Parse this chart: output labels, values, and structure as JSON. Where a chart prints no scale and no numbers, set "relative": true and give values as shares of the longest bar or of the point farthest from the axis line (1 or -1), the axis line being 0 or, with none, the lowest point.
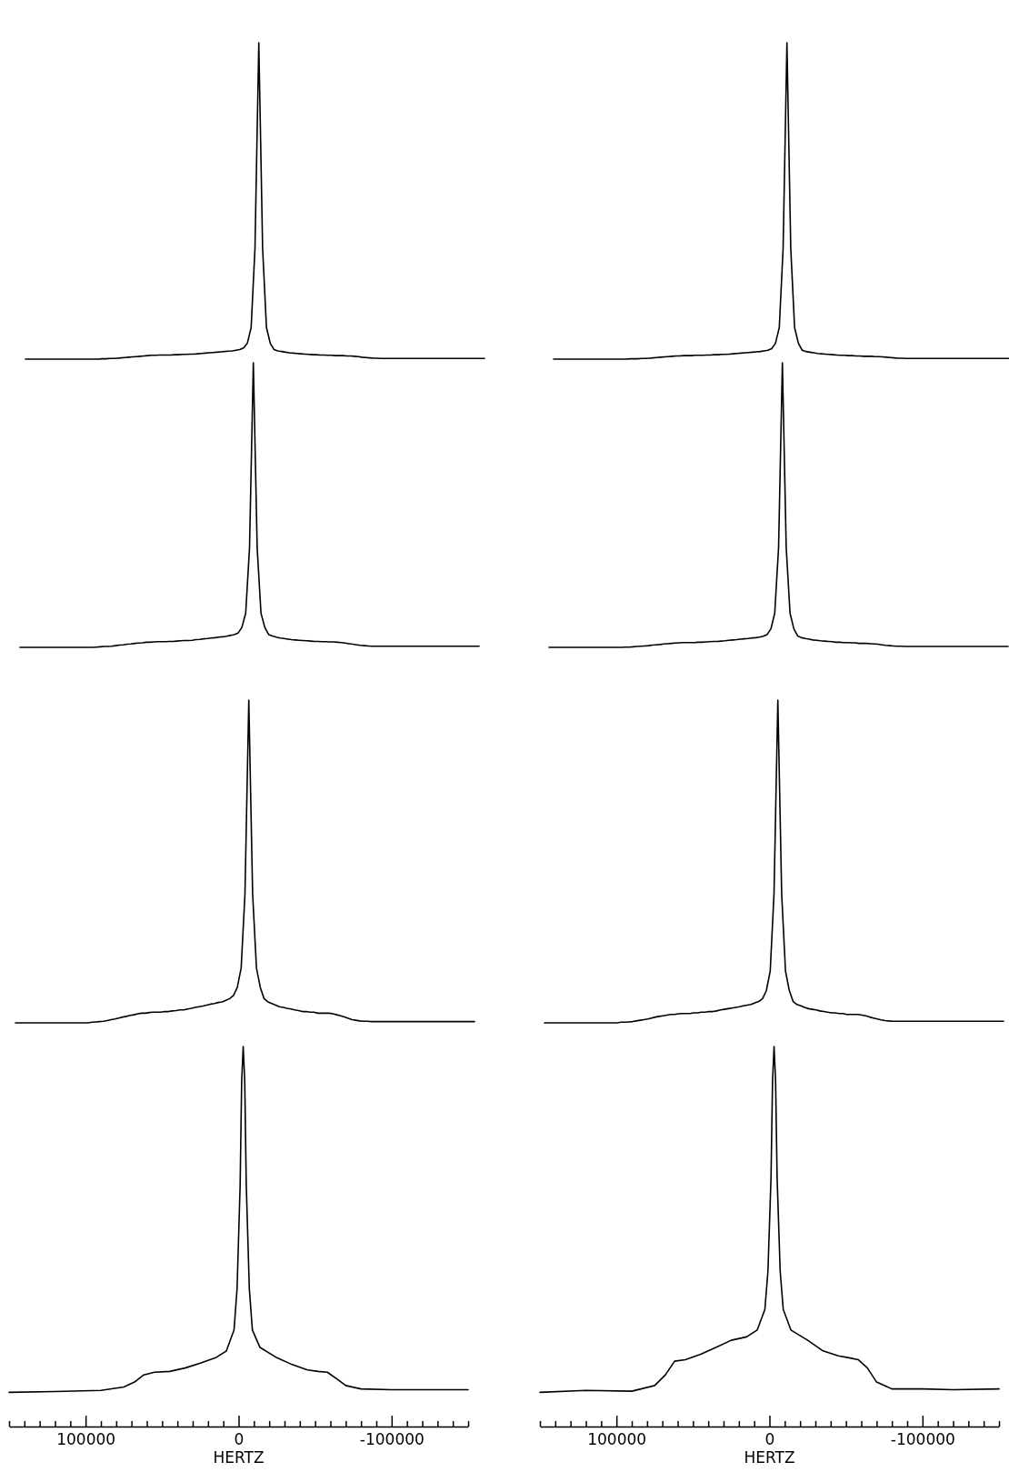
{
  "chart_data": [
    {
      "type": "line",
      "relative": true,
      "tick_labels": false,
      "categories": [
        null,
        null,
        null,
        null,
        null,
        null,
        null,
        null,
        null,
        null,
        null,
        null,
        null,
        null,
        null,
        null,
        null,
        null,
        null,
        null,
        null,
        null,
        null,
        null,
        null,
        null,
        null,
        null,
        null,
        null,
        null,
        null,
        null,
        null,
        null,
        null,
        null,
        null,
        null,
        null,
        null,
        null,
        null,
        null,
        null,
        null,
        null,
        null,
        null,
        null,
        null,
        null,
        null,
        null,
        null,
        null,
        null,
        null,
        null,
        null,
        null,
        null,
        null,
        null,
        null,
        null,
        null,
        null,
        null,
        null,
        null,
        null,
        null,
        null,
        null,
        null,
        null,
        null,
        null,
        null,
        null,
        null,
        null,
        null,
        null,
        null,
        null,
        null,
        null,
        null,
        null,
        null,
        null,
        null,
        null,
        null,
        null,
        null,
        null,
        null,
        null,
        null,
        null,
        null,
        null,
        null,
        null,
        null,
        null,
        null,
        null,
        null,
        null,
        null,
        null,
        null,
        null,
        null,
        null,
        null,
        null
      ],
      "series": [
        {
          "color": "#000000",
          "values": [
            0,
            0,
            0,
            0,
            0,
            0,
            0,
            0,
            0,
            0,
            0,
            0,
            0,
            0,
            0,
            0,
            0,
            0,
            0,
            0,
            0.001,
            0.001,
            0.002,
            0.002,
            0.003,
            0.004,
            0.005,
            0.006,
            0.007,
            0.008,
            0.009,
            0.01,
            0.011,
            0.012,
            0.012,
            0.013,
            0.013,
            0.013,
            0.013,
            0.014,
            0.014,
            0.015,
            0.015,
            0.016,
            0.016,
            0.017,
            0.018,
            0.019,
            0.02,
            0.021,
            0.022,
            0.023,
            0.024,
            0.025,
            0.026,
            0.028,
            0.03,
            0.035,
            0.05,
            0.1,
            0.35,
            1,
            0.35,
            0.1,
            0.05,
            0.03,
            0.026,
            0.024,
            0.022,
            0.02,
            0.019,
            0.018,
            0.017,
            0.016,
            0.015,
            0.014,
            0.014,
            0.013,
            0.013,
            0.012,
            0.012,
            0.011,
            0.011,
            0.011,
            0.01,
            0.01,
            0.009,
            0.008,
            0.006,
            0.005,
            0.004,
            0.003,
            0.003,
            0.002,
            0.002,
            0.002,
            0.002,
            0.002,
            0.002,
            0.002,
            0.002,
            0.002,
            0.002,
            0.002,
            0.002,
            0.002,
            0.002,
            0.002,
            0.002,
            0.002,
            0.002,
            0.002,
            0.002,
            0.002,
            0.002,
            0.002,
            0.002,
            0.002,
            0.002,
            0.002,
            0.002
          ]
        }
      ]
    },
    {
      "type": "line",
      "relative": true,
      "tick_labels": false,
      "categories": [
        null,
        null,
        null,
        null,
        null,
        null,
        null,
        null,
        null,
        null,
        null,
        null,
        null,
        null,
        null,
        null,
        null,
        null,
        null,
        null,
        null,
        null,
        null,
        null,
        null,
        null,
        null,
        null,
        null,
        null,
        null,
        null,
        null,
        null,
        null,
        null,
        null,
        null,
        null,
        null,
        null,
        null,
        null,
        null,
        null,
        null,
        null,
        null,
        null,
        null,
        null,
        null,
        null,
        null,
        null,
        null,
        null,
        null,
        null,
        null,
        null,
        null,
        null,
        null,
        null,
        null,
        null,
        null,
        null,
        null,
        null,
        null,
        null,
        null,
        null,
        null,
        null,
        null,
        null,
        null,
        null,
        null,
        null,
        null,
        null,
        null,
        null,
        null,
        null,
        null,
        null,
        null,
        null,
        null,
        null,
        null,
        null,
        null,
        null,
        null,
        null,
        null,
        null,
        null,
        null,
        null,
        null,
        null,
        null,
        null,
        null,
        null,
        null,
        null,
        null,
        null,
        null,
        null,
        null,
        null,
        null
      ],
      "series": [
        {
          "color": "#000000",
          "values": [
            0,
            0,
            0,
            0,
            0,
            0,
            0,
            0,
            0,
            0,
            0,
            0,
            0,
            0,
            0,
            0,
            0,
            0,
            0,
            0,
            0.001,
            0.001,
            0.001,
            0.002,
            0.002,
            0.003,
            0.004,
            0.005,
            0.006,
            0.007,
            0.008,
            0.009,
            0.01,
            0.01,
            0.011,
            0.011,
            0.011,
            0.012,
            0.012,
            0.012,
            0.013,
            0.013,
            0.014,
            0.014,
            0.015,
            0.015,
            0.016,
            0.017,
            0.018,
            0.019,
            0.02,
            0.021,
            0.022,
            0.023,
            0.024,
            0.026,
            0.028,
            0.033,
            0.05,
            0.1,
            0.35,
            1,
            0.35,
            0.1,
            0.05,
            0.028,
            0.024,
            0.022,
            0.02,
            0.018,
            0.017,
            0.016,
            0.015,
            0.014,
            0.013,
            0.012,
            0.012,
            0.011,
            0.011,
            0.01,
            0.01,
            0.009,
            0.009,
            0.009,
            0.008,
            0.008,
            0.007,
            0.006,
            0.005,
            0.004,
            0.003,
            0.003,
            0.002,
            0.002,
            0.002,
            0.002,
            0.002,
            0.002,
            0.002,
            0.002,
            0.002,
            0.002,
            0.002,
            0.002,
            0.002,
            0.002,
            0.002,
            0.002,
            0.002,
            0.002,
            0.002,
            0.002,
            0.002,
            0.002,
            0.002,
            0.002,
            0.002,
            0.002,
            0.002,
            0.002,
            0.002
          ]
        }
      ]
    },
    {
      "type": "line",
      "relative": true,
      "tick_labels": false,
      "categories": [
        null,
        null,
        null,
        null,
        null,
        null,
        null,
        null,
        null,
        null,
        null,
        null,
        null,
        null,
        null,
        null,
        null,
        null,
        null,
        null,
        null,
        null,
        null,
        null,
        null,
        null,
        null,
        null,
        null,
        null,
        null,
        null,
        null,
        null,
        null,
        null,
        null,
        null,
        null,
        null,
        null,
        null,
        null,
        null,
        null,
        null,
        null,
        null,
        null,
        null,
        null,
        null,
        null,
        null,
        null,
        null,
        null,
        null,
        null,
        null,
        null,
        null,
        null,
        null,
        null,
        null,
        null,
        null,
        null,
        null,
        null,
        null,
        null,
        null,
        null,
        null,
        null,
        null,
        null,
        null,
        null,
        null,
        null,
        null,
        null,
        null,
        null,
        null,
        null,
        null,
        null,
        null,
        null,
        null,
        null,
        null,
        null,
        null,
        null,
        null,
        null,
        null,
        null,
        null,
        null,
        null,
        null,
        null,
        null,
        null,
        null,
        null,
        null,
        null,
        null,
        null,
        null,
        null,
        null,
        null,
        null
      ],
      "series": [
        {
          "color": "#000000",
          "values": [
            0,
            0,
            0,
            0,
            0,
            0,
            0,
            0,
            0,
            0,
            0,
            0,
            0,
            0,
            0,
            0,
            0,
            0,
            0,
            0,
            0.001,
            0.002,
            0.003,
            0.003,
            0.004,
            0.006,
            0.008,
            0.009,
            0.011,
            0.012,
            0.014,
            0.015,
            0.016,
            0.018,
            0.018,
            0.019,
            0.02,
            0.02,
            0.02,
            0.021,
            0.021,
            0.022,
            0.023,
            0.024,
            0.024,
            0.025,
            0.027,
            0.028,
            0.03,
            0.031,
            0.033,
            0.034,
            0.036,
            0.037,
            0.039,
            0.042,
            0.045,
            0.05,
            0.07,
            0.12,
            0.35,
            1,
            0.35,
            0.12,
            0.07,
            0.045,
            0.04,
            0.036,
            0.033,
            0.031,
            0.029,
            0.027,
            0.026,
            0.025,
            0.024,
            0.023,
            0.022,
            0.021,
            0.021,
            0.02,
            0.02,
            0.019,
            0.019,
            0.018,
            0.017,
            0.015,
            0.013,
            0.011,
            0.009,
            0.007,
            0.006,
            0.005,
            0.004,
            0.004,
            0.004,
            0.004,
            0.004,
            0.004,
            0.004,
            0.004,
            0.004,
            0.004,
            0.004,
            0.004,
            0.004,
            0.004,
            0.004,
            0.004,
            0.004,
            0.004,
            0.004,
            0.004,
            0.004,
            0.004,
            0.004,
            0.004,
            0.004,
            0.004,
            0.004,
            0.004,
            0.004
          ]
        }
      ]
    },
    {
      "type": "line",
      "relative": true,
      "tick_labels": false,
      "categories": [
        null,
        null,
        null,
        null,
        null,
        null,
        null,
        null,
        null,
        null,
        null,
        null,
        null,
        null,
        null,
        null,
        null,
        null,
        null,
        null,
        null,
        null,
        null,
        null,
        null,
        null,
        null,
        null,
        null,
        null,
        null,
        null,
        null,
        null,
        null,
        null,
        null,
        null,
        null,
        null,
        null,
        null,
        null,
        null,
        null,
        null,
        null,
        null,
        null,
        null,
        null,
        null,
        null,
        null,
        null,
        null,
        null,
        null,
        null,
        null,
        null,
        null,
        null,
        null,
        null,
        null,
        null,
        null,
        null,
        null,
        null,
        null,
        null,
        null,
        null,
        null,
        null,
        null,
        null,
        null,
        null,
        null,
        null,
        null,
        null,
        null,
        null,
        null,
        null,
        null,
        null,
        null,
        null,
        null,
        null,
        null,
        null,
        null,
        null,
        null,
        null,
        null,
        null,
        null,
        null,
        null,
        null,
        null,
        null,
        null,
        null,
        null,
        null,
        null,
        null,
        null,
        null,
        null,
        null,
        null,
        null
      ],
      "series": [
        {
          "color": "#000000",
          "values": [
            0,
            0,
            0,
            0,
            0,
            0,
            0,
            0,
            0,
            0,
            0,
            0,
            0,
            0,
            0,
            0,
            0,
            0,
            0,
            0,
            0.001,
            0.001,
            0.002,
            0.003,
            0.004,
            0.005,
            0.006,
            0.008,
            0.009,
            0.01,
            0.012,
            0.013,
            0.014,
            0.015,
            0.016,
            0.017,
            0.017,
            0.017,
            0.017,
            0.018,
            0.018,
            0.019,
            0.02,
            0.021,
            0.021,
            0.022,
            0.023,
            0.025,
            0.026,
            0.027,
            0.029,
            0.03,
            0.031,
            0.033,
            0.034,
            0.036,
            0.039,
            0.045,
            0.065,
            0.12,
            0.35,
            1,
            0.35,
            0.12,
            0.065,
            0.04,
            0.034,
            0.031,
            0.029,
            0.026,
            0.025,
            0.023,
            0.022,
            0.021,
            0.02,
            0.018,
            0.018,
            0.017,
            0.017,
            0.016,
            0.016,
            0.014,
            0.014,
            0.014,
            0.013,
            0.012,
            0.011,
            0.009,
            0.007,
            0.006,
            0.005,
            0.004,
            0.004,
            0.003,
            0.003,
            0.003,
            0.003,
            0.003,
            0.003,
            0.003,
            0.003,
            0.003,
            0.003,
            0.003,
            0.003,
            0.003,
            0.003,
            0.003,
            0.003,
            0.003,
            0.003,
            0.003,
            0.003,
            0.003,
            0.003,
            0.003,
            0.003,
            0.003,
            0.003,
            0.003,
            0.003
          ]
        }
      ]
    },
    {
      "type": "line",
      "relative": true,
      "tick_labels": false,
      "categories": [
        null,
        null,
        null,
        null,
        null,
        null,
        null,
        null,
        null,
        null,
        null,
        null,
        null,
        null,
        null,
        null,
        null,
        null,
        null,
        null,
        null,
        null,
        null,
        null,
        null,
        null,
        null,
        null,
        null,
        null,
        null,
        null,
        null,
        null,
        null,
        null,
        null,
        null,
        null,
        null,
        null,
        null,
        null,
        null,
        null,
        null,
        null,
        null,
        null,
        null,
        null,
        null,
        null,
        null,
        null,
        null,
        null,
        null,
        null,
        null,
        null,
        null,
        null,
        null,
        null,
        null,
        null,
        null,
        null,
        null,
        null,
        null,
        null,
        null,
        null,
        null,
        null,
        null,
        null,
        null,
        null,
        null,
        null,
        null,
        null,
        null,
        null,
        null,
        null,
        null,
        null,
        null,
        null,
        null,
        null,
        null,
        null,
        null,
        null,
        null,
        null,
        null,
        null,
        null,
        null,
        null,
        null,
        null,
        null,
        null,
        null,
        null,
        null,
        null,
        null,
        null,
        null,
        null,
        null,
        null,
        null
      ],
      "series": [
        {
          "color": "#000000",
          "values": [
            0,
            0,
            0,
            0,
            0,
            0,
            0,
            0,
            0,
            0,
            0,
            0,
            0,
            0,
            0,
            0,
            0,
            0,
            0,
            0,
            0.002,
            0.003,
            0.004,
            0.005,
            0.007,
            0.01,
            0.012,
            0.015,
            0.018,
            0.02,
            0.023,
            0.025,
            0.028,
            0.03,
            0.03,
            0.032,
            0.033,
            0.033,
            0.033,
            0.035,
            0.035,
            0.037,
            0.038,
            0.04,
            0.04,
            0.043,
            0.045,
            0.048,
            0.05,
            0.052,
            0.055,
            0.058,
            0.06,
            0.063,
            0.065,
            0.07,
            0.075,
            0.085,
            0.11,
            0.17,
            0.4,
            1,
            0.4,
            0.17,
            0.11,
            0.075,
            0.065,
            0.06,
            0.055,
            0.05,
            0.048,
            0.045,
            0.043,
            0.04,
            0.038,
            0.035,
            0.035,
            0.033,
            0.033,
            0.03,
            0.03,
            0.03,
            0.03,
            0.028,
            0.025,
            0.022,
            0.018,
            0.014,
            0.01,
            0.008,
            0.006,
            0.005,
            0.005,
            0.004,
            0.004,
            0.004,
            0.004,
            0.004,
            0.004,
            0.004,
            0.004,
            0.004,
            0.004,
            0.004,
            0.004,
            0.004,
            0.004,
            0.004,
            0.004,
            0.004,
            0.004,
            0.004,
            0.004,
            0.004,
            0.004,
            0.004,
            0.004,
            0.004,
            0.004,
            0.004,
            0.004
          ]
        }
      ]
    },
    {
      "type": "line",
      "relative": true,
      "tick_labels": false,
      "categories": [
        null,
        null,
        null,
        null,
        null,
        null,
        null,
        null,
        null,
        null,
        null,
        null,
        null,
        null,
        null,
        null,
        null,
        null,
        null,
        null,
        null,
        null,
        null,
        null,
        null,
        null,
        null,
        null,
        null,
        null,
        null,
        null,
        null,
        null,
        null,
        null,
        null,
        null,
        null,
        null,
        null,
        null,
        null,
        null,
        null,
        null,
        null,
        null,
        null,
        null,
        null,
        null,
        null,
        null,
        null,
        null,
        null,
        null,
        null,
        null,
        null,
        null,
        null,
        null,
        null,
        null,
        null,
        null,
        null,
        null,
        null,
        null,
        null,
        null,
        null,
        null,
        null,
        null,
        null,
        null,
        null,
        null,
        null,
        null,
        null,
        null,
        null,
        null,
        null,
        null,
        null,
        null,
        null,
        null,
        null,
        null,
        null,
        null,
        null,
        null,
        null,
        null,
        null,
        null,
        null,
        null,
        null,
        null,
        null,
        null,
        null,
        null,
        null,
        null,
        null,
        null,
        null,
        null,
        null,
        null,
        null
      ],
      "series": [
        {
          "color": "#000000",
          "values": [
            0,
            0,
            0,
            0,
            0,
            0,
            0,
            0,
            0,
            0,
            0,
            0,
            0,
            0,
            0,
            0,
            0,
            0,
            0,
            0,
            0.002,
            0.002,
            0.003,
            0.004,
            0.006,
            0.008,
            0.01,
            0.012,
            0.015,
            0.018,
            0.02,
            0.022,
            0.024,
            0.026,
            0.026,
            0.028,
            0.029,
            0.029,
            0.029,
            0.031,
            0.031,
            0.033,
            0.033,
            0.035,
            0.035,
            0.037,
            0.04,
            0.042,
            0.044,
            0.046,
            0.048,
            0.05,
            0.053,
            0.055,
            0.057,
            0.062,
            0.066,
            0.075,
            0.1,
            0.16,
            0.4,
            1,
            0.4,
            0.16,
            0.1,
            0.066,
            0.057,
            0.053,
            0.048,
            0.044,
            0.042,
            0.04,
            0.037,
            0.035,
            0.033,
            0.031,
            0.031,
            0.029,
            0.029,
            0.026,
            0.026,
            0.026,
            0.026,
            0.024,
            0.022,
            0.018,
            0.015,
            0.012,
            0.009,
            0.007,
            0.006,
            0.005,
            0.005,
            0.005,
            0.005,
            0.005,
            0.005,
            0.005,
            0.005,
            0.005,
            0.005,
            0.005,
            0.005,
            0.005,
            0.005,
            0.005,
            0.005,
            0.005,
            0.005,
            0.005,
            0.005,
            0.005,
            0.005,
            0.005,
            0.005,
            0.005,
            0.005,
            0.005,
            0.005,
            0.005,
            0.005
          ]
        }
      ]
    },
    {
      "type": "line",
      "relative": true,
      "tick_labels": "x",
      "xlim": [
        150000,
        -150000
      ],
      "xlabel": "HERTZ",
      "xticks": [
        {
          "value": 150000,
          "label": null
        },
        {
          "value": 140000,
          "label": null
        },
        {
          "value": 130000,
          "label": null
        },
        {
          "value": 120000,
          "label": null
        },
        {
          "value": 110000,
          "label": null
        },
        100000,
        {
          "value": 90000,
          "label": null
        },
        {
          "value": 80000,
          "label": null
        },
        {
          "value": 70000,
          "label": null
        },
        {
          "value": 60000,
          "label": null
        },
        {
          "value": 50000,
          "label": null
        },
        {
          "value": 40000,
          "label": null
        },
        {
          "value": 30000,
          "label": null
        },
        {
          "value": 20000,
          "label": null
        },
        {
          "value": 10000,
          "label": null
        },
        0,
        {
          "value": -10000,
          "label": null
        },
        {
          "value": -20000,
          "label": null
        },
        {
          "value": -30000,
          "label": null
        },
        {
          "value": -40000,
          "label": null
        },
        {
          "value": -50000,
          "label": null
        },
        {
          "value": -60000,
          "label": null
        },
        {
          "value": -70000,
          "label": null
        },
        {
          "value": -80000,
          "label": null
        },
        {
          "value": -90000,
          "label": null
        },
        -100000,
        {
          "value": -110000,
          "label": null
        },
        {
          "value": -120000,
          "label": null
        },
        {
          "value": -130000,
          "label": null
        },
        {
          "value": -140000,
          "label": null
        },
        {
          "value": -150000,
          "label": null
        }
      ],
      "x": [
        150000,
        120000,
        90000,
        75000,
        68000,
        62000,
        55000,
        45000,
        35000,
        25000,
        15000,
        8000,
        3000,
        1000,
        -1000,
        -2000,
        -3000,
        -4000,
        -5000,
        -7000,
        -9000,
        -14000,
        -25000,
        -35000,
        -45000,
        -52000,
        -58000,
        -64000,
        -70000,
        -80000,
        -100000,
        -120000,
        -150000
      ],
      "series": [
        {
          "color": "#000000",
          "values": [
            0.09,
            0.092,
            0.095,
            0.104,
            0.117,
            0.136,
            0.143,
            0.145,
            0.154,
            0.167,
            0.181,
            0.199,
            0.254,
            0.363,
            0.636,
            0.909,
            1,
            0.909,
            0.636,
            0.363,
            0.254,
            0.208,
            0.181,
            0.163,
            0.149,
            0.145,
            0.143,
            0.126,
            0.108,
            0.099,
            0.097,
            0.097,
            0.097
          ]
        }
      ]
    },
    {
      "type": "line",
      "relative": true,
      "tick_labels": "x",
      "xlim": [
        150000,
        -150000
      ],
      "xlabel": "HERTZ",
      "xticks": [
        {
          "value": 150000,
          "label": null
        },
        {
          "value": 140000,
          "label": null
        },
        {
          "value": 130000,
          "label": null
        },
        {
          "value": 120000,
          "label": null
        },
        {
          "value": 110000,
          "label": null
        },
        100000,
        {
          "value": 90000,
          "label": null
        },
        {
          "value": 80000,
          "label": null
        },
        {
          "value": 70000,
          "label": null
        },
        {
          "value": 60000,
          "label": null
        },
        {
          "value": 50000,
          "label": null
        },
        {
          "value": 40000,
          "label": null
        },
        {
          "value": 30000,
          "label": null
        },
        {
          "value": 20000,
          "label": null
        },
        {
          "value": 10000,
          "label": null
        },
        0,
        {
          "value": -10000,
          "label": null
        },
        {
          "value": -20000,
          "label": null
        },
        {
          "value": -30000,
          "label": null
        },
        {
          "value": -40000,
          "label": null
        },
        {
          "value": -50000,
          "label": null
        },
        {
          "value": -60000,
          "label": null
        },
        {
          "value": -70000,
          "label": null
        },
        {
          "value": -80000,
          "label": null
        },
        {
          "value": -90000,
          "label": null
        },
        -100000,
        {
          "value": -110000,
          "label": null
        },
        {
          "value": -120000,
          "label": null
        },
        {
          "value": -130000,
          "label": null
        },
        {
          "value": -140000,
          "label": null
        },
        {
          "value": -150000,
          "label": null
        }
      ],
      "x": [
        150000,
        120000,
        90000,
        75000,
        68000,
        62000,
        55000,
        45000,
        35000,
        25000,
        15000,
        8000,
        3000,
        1000,
        -1000,
        -2000,
        -3000,
        -4000,
        -5000,
        -7000,
        -9000,
        -14000,
        -25000,
        -35000,
        -45000,
        -52000,
        -58000,
        -64000,
        -70000,
        -80000,
        -100000,
        -120000,
        -150000
      ],
      "series": [
        {
          "color": "#000000",
          "values": [
            0.09,
            0.095,
            0.093,
            0.108,
            0.136,
            0.172,
            0.176,
            0.19,
            0.208,
            0.227,
            0.236,
            0.254,
            0.308,
            0.409,
            0.654,
            0.909,
            1,
            0.909,
            0.654,
            0.409,
            0.308,
            0.254,
            0.227,
            0.199,
            0.186,
            0.181,
            0.176,
            0.154,
            0.117,
            0.099,
            0.099,
            0.097,
            0.099
          ]
        }
      ]
    }
  ]
}
